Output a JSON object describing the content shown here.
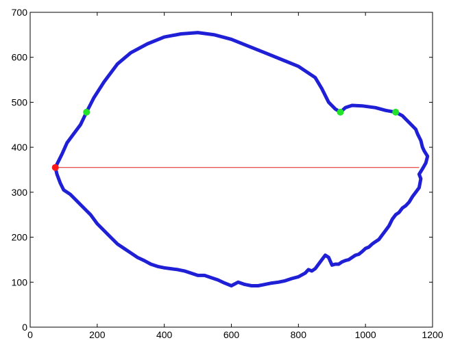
{
  "chart_data": {
    "type": "line",
    "title": "",
    "xlabel": "",
    "ylabel": "",
    "xlim": [
      0,
      1200
    ],
    "ylim": [
      0,
      700
    ],
    "xticks": [
      0,
      200,
      400,
      600,
      800,
      1000,
      1200
    ],
    "yticks": [
      0,
      100,
      200,
      300,
      400,
      500,
      600,
      700
    ],
    "grid": false,
    "colors": {
      "outline": "#1f1fd6",
      "chord": "#e01b1b",
      "green_points": "#22e32a",
      "red_point": "#ff1a1a"
    },
    "series": [
      {
        "kind": "closed-outline",
        "x": [
          75,
          95,
          110,
          130,
          150,
          168,
          190,
          220,
          260,
          300,
          350,
          400,
          450,
          500,
          550,
          600,
          650,
          700,
          750,
          800,
          850,
          870,
          890,
          910,
          925,
          940,
          960,
          990,
          1030,
          1060,
          1090,
          1110,
          1130,
          1150,
          1155,
          1165,
          1170,
          1175,
          1185,
          1180,
          1170,
          1160,
          1165,
          1160,
          1150,
          1140,
          1130,
          1120,
          1110,
          1100,
          1090,
          1080,
          1070,
          1060,
          1050,
          1040,
          1030,
          1020,
          1010,
          1000,
          990,
          980,
          970,
          960,
          950,
          940,
          930,
          920,
          910,
          900,
          890,
          880,
          870,
          860,
          850,
          840,
          830,
          820,
          800,
          780,
          760,
          740,
          720,
          700,
          680,
          660,
          640,
          620,
          600,
          580,
          560,
          540,
          520,
          500,
          480,
          460,
          440,
          420,
          400,
          380,
          360,
          340,
          320,
          300,
          280,
          260,
          240,
          220,
          200,
          180,
          160,
          140,
          120,
          100,
          90,
          80,
          75
        ],
        "y": [
          355,
          385,
          410,
          430,
          450,
          478,
          510,
          545,
          585,
          610,
          630,
          645,
          652,
          655,
          650,
          640,
          625,
          610,
          595,
          580,
          555,
          530,
          500,
          485,
          478,
          488,
          493,
          492,
          488,
          482,
          478,
          470,
          455,
          440,
          430,
          415,
          400,
          392,
          380,
          365,
          352,
          340,
          330,
          310,
          300,
          290,
          278,
          270,
          265,
          255,
          250,
          240,
          225,
          215,
          205,
          195,
          190,
          185,
          178,
          175,
          168,
          162,
          160,
          155,
          150,
          148,
          145,
          140,
          140,
          138,
          155,
          160,
          150,
          140,
          130,
          125,
          128,
          120,
          112,
          108,
          103,
          100,
          98,
          95,
          92,
          92,
          95,
          100,
          92,
          98,
          105,
          110,
          115,
          115,
          120,
          125,
          128,
          130,
          132,
          135,
          140,
          148,
          155,
          165,
          175,
          185,
          200,
          215,
          230,
          250,
          265,
          280,
          295,
          305,
          320,
          340,
          355
        ]
      },
      {
        "kind": "chord",
        "x": [
          75,
          1160
        ],
        "y": [
          355,
          355
        ]
      }
    ],
    "markers": [
      {
        "x": 75,
        "y": 355,
        "color": "red"
      },
      {
        "x": 168,
        "y": 478,
        "color": "green"
      },
      {
        "x": 925,
        "y": 478,
        "color": "green"
      },
      {
        "x": 1090,
        "y": 478,
        "color": "green"
      }
    ]
  }
}
